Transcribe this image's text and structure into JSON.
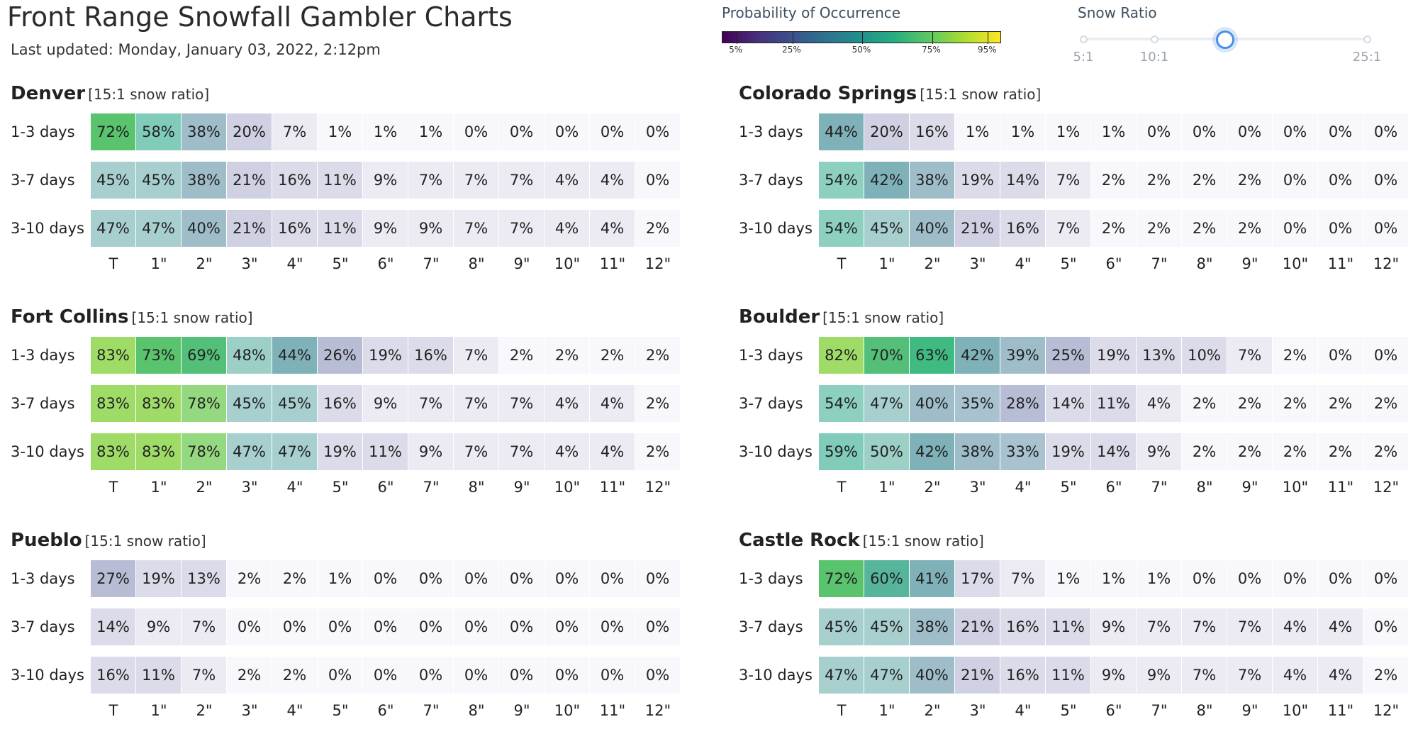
{
  "header": {
    "title": "Front Range Snowfall Gambler Charts",
    "updated": "Last updated: Monday, January 03, 2022, 2:12pm"
  },
  "legend": {
    "label": "Probability of Occurrence",
    "ticks": [
      "5%",
      "25%",
      "50%",
      "75%",
      "95%"
    ],
    "tick_values": [
      5,
      25,
      50,
      75,
      95
    ]
  },
  "slider": {
    "label": "Snow Ratio",
    "marks": [
      "5:1",
      "10:1",
      "25:1"
    ],
    "mark_values": [
      5,
      10,
      25
    ],
    "min": 5,
    "max": 25,
    "selected_value": 15
  },
  "axis_labels": [
    "T",
    "1\"",
    "2\"",
    "3\"",
    "4\"",
    "5\"",
    "6\"",
    "7\"",
    "8\"",
    "9\"",
    "10\"",
    "11\"",
    "12\""
  ],
  "row_labels": [
    "1-3 days",
    "3-7 days",
    "3-10 days"
  ],
  "stations": [
    {
      "name": "Denver",
      "ratio": "[15:1 snow ratio]",
      "rows": [
        [
          72,
          58,
          38,
          20,
          7,
          1,
          1,
          1,
          0,
          0,
          0,
          0,
          0
        ],
        [
          45,
          45,
          38,
          21,
          16,
          11,
          9,
          7,
          7,
          7,
          4,
          4,
          0
        ],
        [
          47,
          47,
          40,
          21,
          16,
          11,
          9,
          9,
          7,
          7,
          4,
          4,
          2
        ]
      ]
    },
    {
      "name": "Colorado Springs",
      "ratio": "[15:1 snow ratio]",
      "rows": [
        [
          44,
          20,
          16,
          1,
          1,
          1,
          1,
          0,
          0,
          0,
          0,
          0,
          0
        ],
        [
          54,
          42,
          38,
          19,
          14,
          7,
          2,
          2,
          2,
          2,
          0,
          0,
          0
        ],
        [
          54,
          45,
          40,
          21,
          16,
          7,
          2,
          2,
          2,
          2,
          0,
          0,
          0
        ]
      ]
    },
    {
      "name": "Fort Collins",
      "ratio": "[15:1 snow ratio]",
      "rows": [
        [
          83,
          73,
          69,
          48,
          44,
          26,
          19,
          16,
          7,
          2,
          2,
          2,
          2
        ],
        [
          83,
          83,
          78,
          45,
          45,
          16,
          9,
          7,
          7,
          7,
          4,
          4,
          2
        ],
        [
          83,
          83,
          78,
          47,
          47,
          19,
          11,
          9,
          7,
          7,
          4,
          4,
          2
        ]
      ]
    },
    {
      "name": "Boulder",
      "ratio": "[15:1 snow ratio]",
      "rows": [
        [
          82,
          70,
          63,
          42,
          39,
          25,
          19,
          13,
          10,
          7,
          2,
          0,
          0
        ],
        [
          54,
          47,
          40,
          35,
          28,
          14,
          11,
          4,
          2,
          2,
          2,
          2,
          2
        ],
        [
          59,
          50,
          42,
          38,
          33,
          19,
          14,
          9,
          2,
          2,
          2,
          2,
          2
        ]
      ]
    },
    {
      "name": "Pueblo",
      "ratio": "[15:1 snow ratio]",
      "rows": [
        [
          27,
          19,
          13,
          2,
          2,
          1,
          0,
          0,
          0,
          0,
          0,
          0,
          0
        ],
        [
          14,
          9,
          7,
          0,
          0,
          0,
          0,
          0,
          0,
          0,
          0,
          0,
          0
        ],
        [
          16,
          11,
          7,
          2,
          2,
          0,
          0,
          0,
          0,
          0,
          0,
          0,
          0
        ]
      ]
    },
    {
      "name": "Castle Rock",
      "ratio": "[15:1 snow ratio]",
      "rows": [
        [
          72,
          60,
          41,
          17,
          7,
          1,
          1,
          1,
          0,
          0,
          0,
          0,
          0
        ],
        [
          45,
          45,
          38,
          21,
          16,
          11,
          9,
          7,
          7,
          7,
          4,
          4,
          0
        ],
        [
          47,
          47,
          40,
          21,
          16,
          11,
          9,
          9,
          7,
          7,
          4,
          4,
          2
        ]
      ]
    }
  ]
}
